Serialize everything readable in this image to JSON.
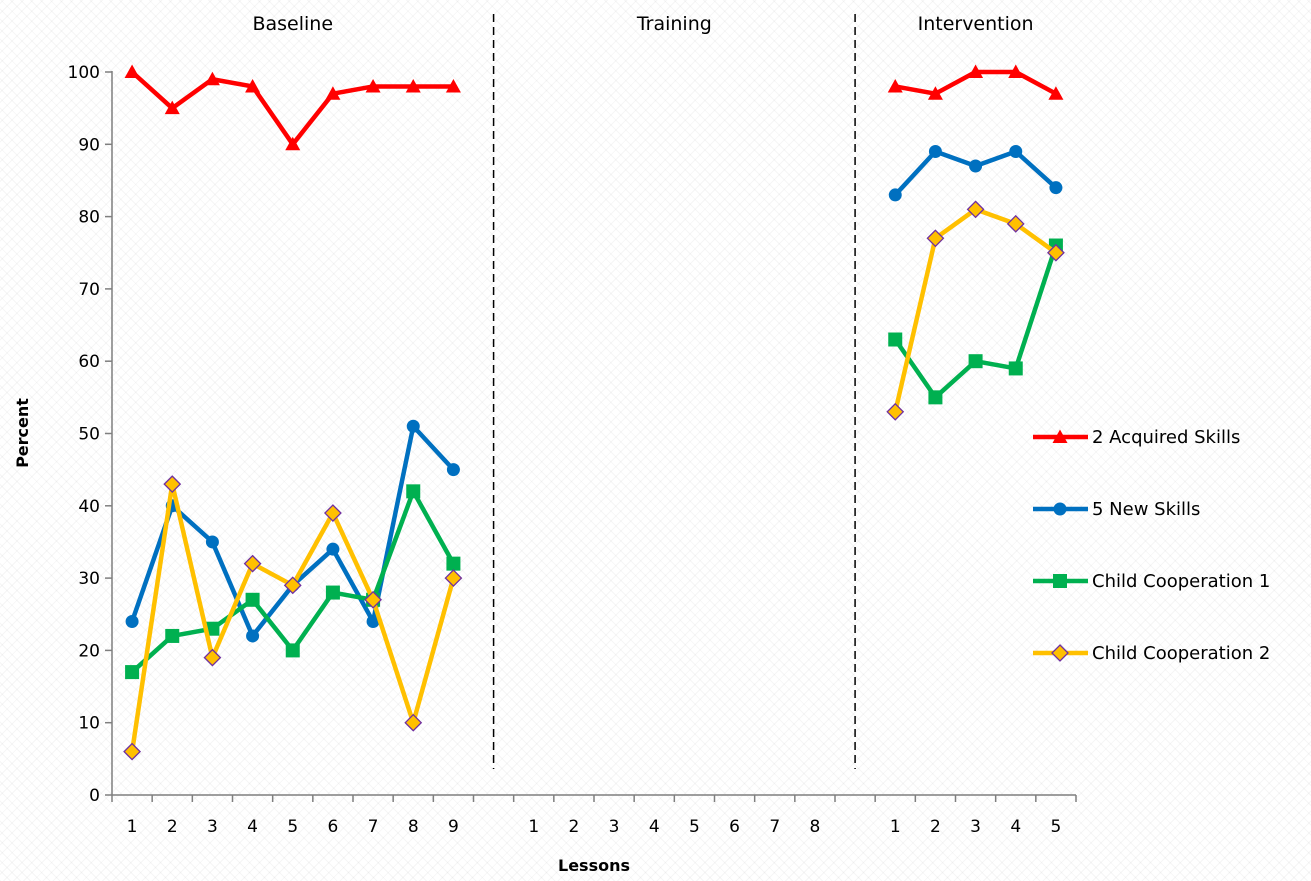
{
  "chart_data": {
    "type": "line",
    "xlabel": "Lessons",
    "ylabel": "Percent",
    "ylim": [
      0,
      100
    ],
    "y_ticks": [
      0,
      10,
      20,
      30,
      40,
      50,
      60,
      70,
      80,
      90,
      100
    ],
    "grid": false,
    "legend_position": "right",
    "phases": [
      {
        "name": "Baseline",
        "categories": [
          "1",
          "2",
          "3",
          "4",
          "5",
          "6",
          "7",
          "8",
          "9"
        ]
      },
      {
        "name": "Training",
        "categories": [
          "1",
          "2",
          "3",
          "4",
          "5",
          "6",
          "7",
          "8"
        ]
      },
      {
        "name": "Intervention",
        "categories": [
          "1",
          "2",
          "3",
          "4",
          "5"
        ]
      }
    ],
    "series": [
      {
        "name": "2 Acquired Skills",
        "color": "#ff0000",
        "marker": "triangle",
        "segments": [
          {
            "phase": 0,
            "values": [
              100,
              95,
              99,
              98,
              90,
              97,
              98,
              98,
              98
            ]
          },
          {
            "phase": 2,
            "values": [
              98,
              97,
              100,
              100,
              97
            ]
          }
        ]
      },
      {
        "name": "5 New Skills",
        "color": "#0070c0",
        "marker": "circle",
        "segments": [
          {
            "phase": 0,
            "values": [
              24,
              40,
              35,
              22,
              29,
              34,
              24,
              51,
              45
            ]
          },
          {
            "phase": 2,
            "values": [
              83,
              89,
              87,
              89,
              84
            ]
          }
        ]
      },
      {
        "name": "Child Cooperation 1",
        "color": "#00b050",
        "marker": "square",
        "segments": [
          {
            "phase": 0,
            "values": [
              17,
              22,
              23,
              27,
              20,
              28,
              27,
              42,
              32
            ]
          },
          {
            "phase": 2,
            "values": [
              63,
              55,
              60,
              59,
              76
            ]
          }
        ]
      },
      {
        "name": "Child Cooperation 2",
        "color": "#ffc000",
        "marker": "diamond",
        "marker_stroke": "#7030a0",
        "segments": [
          {
            "phase": 0,
            "values": [
              6,
              43,
              19,
              32,
              29,
              39,
              27,
              10,
              30
            ]
          },
          {
            "phase": 2,
            "values": [
              53,
              77,
              81,
              79,
              75
            ]
          }
        ]
      }
    ]
  }
}
